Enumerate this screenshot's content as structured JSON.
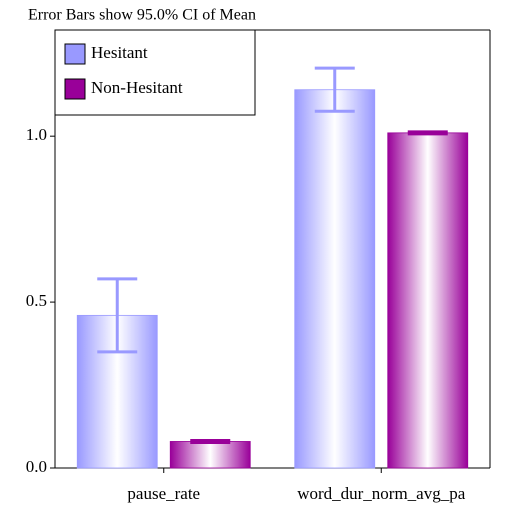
{
  "chart_data": {
    "type": "bar",
    "title": "Error Bars show 95.0% CI of Mean",
    "categories": [
      "pause_rate",
      "word_dur_norm_avg_pa"
    ],
    "series": [
      {
        "name": "Hesitant",
        "color": "#9999ff",
        "values": [
          0.46,
          1.14
        ],
        "errors": [
          0.11,
          0.065
        ]
      },
      {
        "name": "Non-Hesitant",
        "color": "#990099",
        "values": [
          0.08,
          1.01
        ],
        "errors": [
          0.003,
          0.003
        ]
      }
    ],
    "ylim": [
      0,
      1.32
    ],
    "yticks": [
      {
        "value": 0,
        "label": "0.0"
      },
      0.5,
      {
        "value": 1,
        "label": "1.0"
      }
    ],
    "legend": "top-left",
    "error_color": "#9999ff"
  }
}
